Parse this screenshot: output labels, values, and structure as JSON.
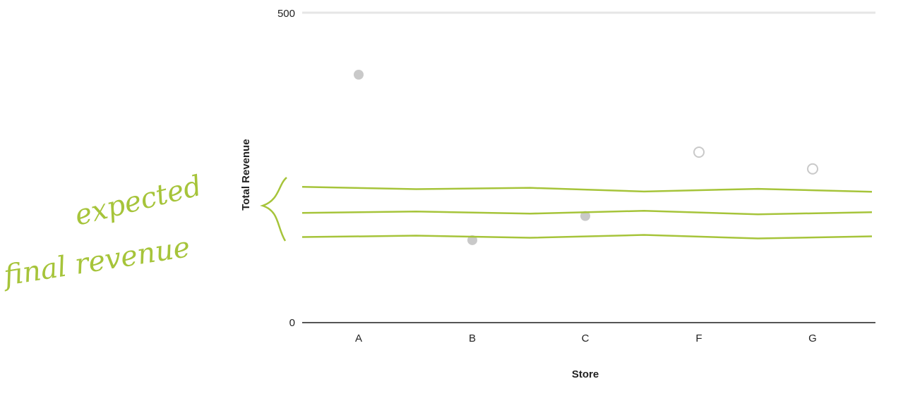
{
  "chart_data": {
    "type": "scatter",
    "categories": [
      "A",
      "B",
      "C",
      "F",
      "G"
    ],
    "values": [
      400,
      133,
      172,
      275,
      248
    ],
    "xlabel": "Store",
    "ylabel": "Total Revenue",
    "ylim": [
      0,
      500
    ],
    "yticks": [
      0,
      500
    ],
    "grid": false,
    "point_color": "#c9c9c9",
    "annotation": {
      "text_line1": "expected",
      "text_line2": "final revenue",
      "color": "#a6c43a",
      "lines_y": [
        219,
        177,
        138
      ]
    }
  }
}
